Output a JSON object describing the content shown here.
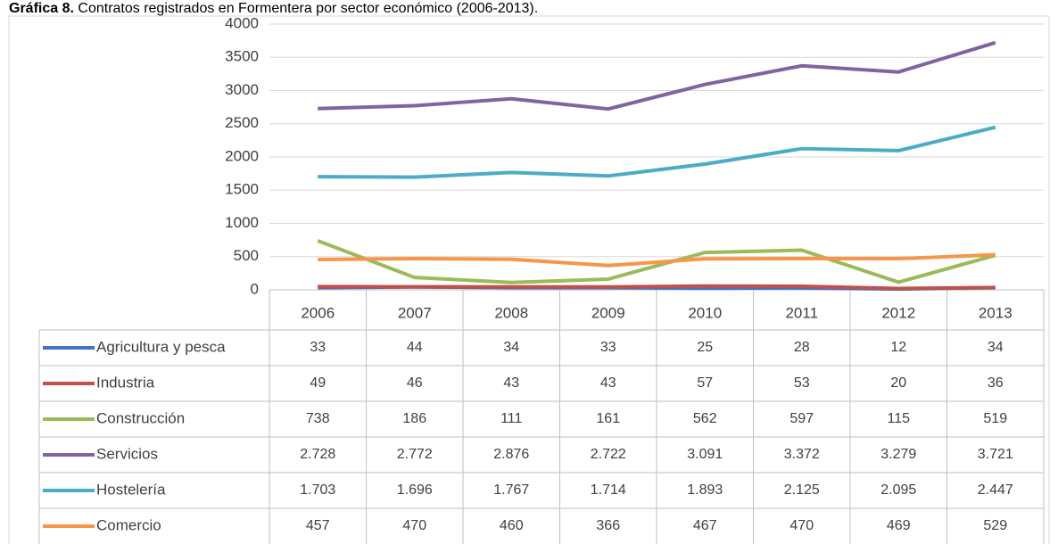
{
  "chart_data": {
    "type": "line",
    "title_label": "Gráfica 8.",
    "title": "Contratos registrados en Formentera por sector económico (2006-2013).",
    "categories": [
      "2006",
      "2007",
      "2008",
      "2009",
      "2010",
      "2011",
      "2012",
      "2013"
    ],
    "series": [
      {
        "name": "Agricultura y pesca",
        "color": "#4472c4",
        "values": [
          33,
          44,
          34,
          33,
          25,
          28,
          12,
          34
        ]
      },
      {
        "name": "Industria",
        "color": "#c0504d",
        "values": [
          49,
          46,
          43,
          43,
          57,
          53,
          20,
          36
        ]
      },
      {
        "name": "Construcción",
        "color": "#9bbb59",
        "values": [
          738,
          186,
          111,
          161,
          562,
          597,
          115,
          519
        ]
      },
      {
        "name": "Servicios",
        "color": "#8064a2",
        "values": [
          2728,
          2772,
          2876,
          2722,
          3091,
          3372,
          3279,
          3721
        ],
        "value_labels": [
          "2.728",
          "2.772",
          "2.876",
          "2.722",
          "3.091",
          "3.372",
          "3.279",
          "3.721"
        ]
      },
      {
        "name": "Hostelería",
        "color": "#4bacc6",
        "values": [
          1703,
          1696,
          1767,
          1714,
          1893,
          2125,
          2095,
          2447
        ],
        "value_labels": [
          "1.703",
          "1.696",
          "1.767",
          "1.714",
          "1.893",
          "2.125",
          "2.095",
          "2.447"
        ]
      },
      {
        "name": "Comercio",
        "color": "#f79646",
        "values": [
          457,
          470,
          460,
          366,
          467,
          470,
          469,
          529
        ]
      }
    ],
    "ylim": [
      0,
      4000
    ],
    "yticks": [
      0,
      500,
      1000,
      1500,
      2000,
      2500,
      3000,
      3500,
      4000
    ],
    "grid": true
  }
}
